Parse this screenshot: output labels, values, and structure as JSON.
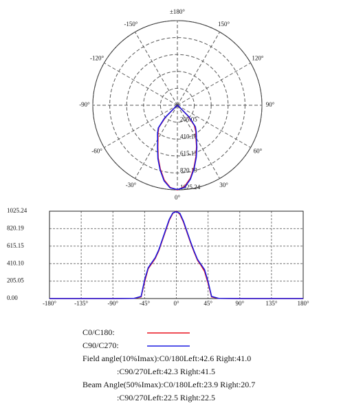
{
  "chart_data": [
    {
      "type": "polar",
      "x": [
        -180,
        -90,
        -60,
        -50,
        -45,
        -40,
        -35,
        -30,
        -25,
        -20,
        -15,
        -10,
        -5,
        0,
        5,
        10,
        15,
        20,
        25,
        30,
        35,
        40,
        45,
        50,
        60,
        90,
        180
      ],
      "series": [
        {
          "color": "#e8101e",
          "values": [
            0,
            0,
            2,
            20,
            200,
            350,
            410,
            470,
            560,
            680,
            800,
            920,
            1000,
            1025.24,
            990,
            900,
            780,
            660,
            550,
            450,
            390,
            320,
            180,
            20,
            2,
            0,
            0
          ]
        },
        {
          "color": "#1a1ae0",
          "values": [
            0,
            0,
            2,
            25,
            220,
            360,
            420,
            480,
            570,
            690,
            810,
            930,
            1005,
            1020,
            1000,
            910,
            790,
            670,
            560,
            460,
            400,
            340,
            200,
            25,
            2,
            0,
            0
          ]
        }
      ],
      "xticks": [
        {
          "value": 180,
          "label": "±180°"
        },
        {
          "value": 150,
          "label": "150°"
        },
        {
          "value": 120,
          "label": "120°"
        },
        {
          "value": 90,
          "label": "90°"
        },
        {
          "value": 60,
          "label": "60°"
        },
        {
          "value": 30,
          "label": "30°"
        },
        {
          "value": 0,
          "label": "0°"
        },
        {
          "value": -30,
          "label": "-30°"
        },
        {
          "value": -60,
          "label": "-60°"
        },
        {
          "value": -90,
          "label": "-90°"
        },
        {
          "value": -120,
          "label": "-120°"
        },
        {
          "value": -150,
          "label": "-150°"
        }
      ],
      "ylim": [
        0,
        1025.24
      ],
      "yticks": [
        205.05,
        {
          "value": 410.1,
          "label": "410.10"
        },
        615.15,
        820.19,
        1025.24
      ]
    },
    {
      "type": "line",
      "x": [
        -180,
        -90,
        -60,
        -50,
        -45,
        -40,
        -35,
        -30,
        -25,
        -20,
        -15,
        -10,
        -5,
        0,
        5,
        10,
        15,
        20,
        25,
        30,
        35,
        40,
        45,
        50,
        60,
        90,
        180
      ],
      "series": [
        {
          "name": "C0/C180:",
          "color": "#e8101e",
          "values": [
            0,
            0,
            2,
            20,
            200,
            350,
            410,
            470,
            560,
            680,
            800,
            920,
            1000,
            1025.24,
            990,
            900,
            780,
            660,
            550,
            450,
            390,
            320,
            180,
            20,
            2,
            0,
            0
          ]
        },
        {
          "name": "C90/C270:",
          "color": "#1a1ae0",
          "values": [
            0,
            0,
            2,
            25,
            220,
            360,
            420,
            480,
            570,
            690,
            810,
            930,
            1005,
            1020,
            1000,
            910,
            790,
            670,
            560,
            460,
            400,
            340,
            200,
            25,
            2,
            0,
            0
          ]
        }
      ],
      "xlim": [
        -180,
        180
      ],
      "xticks": [
        {
          "value": -180,
          "label": "-180°"
        },
        {
          "value": -135,
          "label": "-135°"
        },
        {
          "value": -90,
          "label": "-90°"
        },
        {
          "value": -45,
          "label": "-45°"
        },
        {
          "value": 0,
          "label": "0°"
        },
        {
          "value": 45,
          "label": "45°"
        },
        {
          "value": 90,
          "label": "90°"
        },
        {
          "value": 135,
          "label": "135°"
        },
        {
          "value": 180,
          "label": "180°"
        }
      ],
      "ylim": [
        0,
        1025.24
      ],
      "yticks": [
        {
          "value": 0,
          "label": "0.00"
        },
        205.05,
        {
          "value": 410.1,
          "label": "410.10"
        },
        615.15,
        820.19,
        1025.24
      ],
      "grid": true,
      "annotations": [
        "Field angle(10%Imax):C0/180Left:42.6 Right:41.0",
        ":C90/270Left:42.3 Right:41.5",
        "Beam Angle(50%Imax):C0/180Left:23.9 Right:20.7",
        ":C90/270Left:22.5 Right:22.5"
      ]
    }
  ]
}
